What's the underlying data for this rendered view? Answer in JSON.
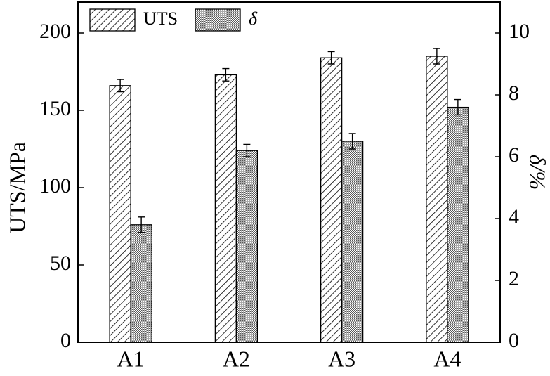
{
  "chart_data": {
    "type": "bar",
    "categories": [
      "A1",
      "A2",
      "A3",
      "A4"
    ],
    "y_label": "UTS/MPa",
    "y2_label": "δ/%",
    "ylim": [
      0,
      220
    ],
    "yticks": [
      0,
      50,
      100,
      150,
      200
    ],
    "y2lim": [
      0,
      11
    ],
    "y2ticks": [
      0,
      2,
      4,
      6,
      8,
      10
    ],
    "legend": "top-left",
    "series": [
      {
        "name": "UTS",
        "color": "#000000",
        "pattern": "hatch",
        "values": [
          166,
          173,
          184,
          185
        ],
        "errors": [
          4,
          4,
          4,
          5
        ]
      },
      {
        "name": "δ",
        "color": "#000000",
        "pattern": "dots",
        "axis": "y2",
        "values": [
          3.8,
          6.2,
          6.5,
          7.6
        ],
        "errors": [
          0.25,
          0.2,
          0.25,
          0.25
        ]
      }
    ]
  }
}
